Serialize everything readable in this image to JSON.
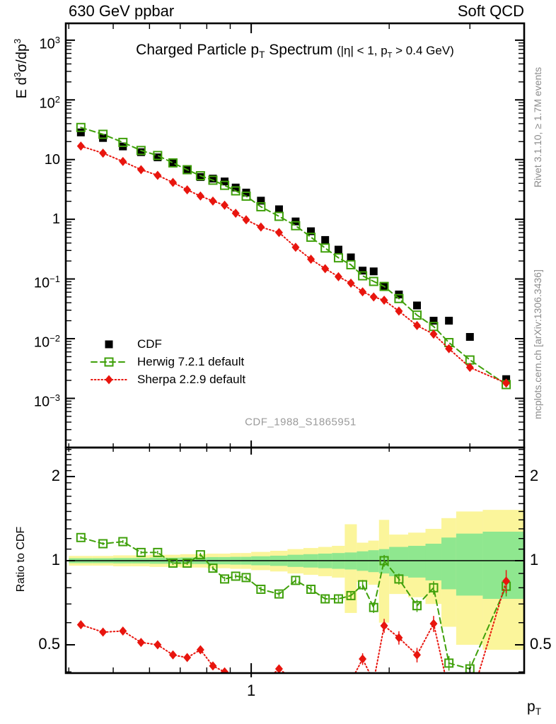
{
  "header": {
    "left": "630 GeV ppbar",
    "right": "Soft QCD"
  },
  "main_panel": {
    "title_parts": [
      "Charged Particle p",
      "T",
      " Spectrum"
    ],
    "title_paren_parts": [
      "(|η| < 1, p",
      "T",
      " > 0.4 GeV)"
    ],
    "ylabel_parts": [
      "E d",
      "3",
      "σ/dp",
      "3"
    ],
    "watermark": "CDF_1988_S1865951"
  },
  "ratio_panel": {
    "ylabel": "Ratio to CDF"
  },
  "x_axis_title_parts": [
    "p",
    "T"
  ],
  "side_notes": {
    "rivet": "Rivet 3.1.10, ≥ 1.7M events",
    "mcplots": "mcplots.cern.ch [arXiv:1306.3436]"
  },
  "legend": [
    {
      "label": "CDF",
      "series": 0
    },
    {
      "label": "Herwig 7.2.1 default",
      "series": 1
    },
    {
      "label": "Sherpa 2.2.9 default",
      "series": 2
    }
  ],
  "colors": {
    "cdf": "#000000",
    "herwig": "#3fa00a",
    "sherpa": "#e8150e",
    "band_yellow": "#fbf59b",
    "band_green": "#8fe78f"
  },
  "chart_data": {
    "type": "line",
    "title": "Charged Particle pT Spectrum (|η| < 1, pT > 0.4 GeV)",
    "xlabel": "pT",
    "ylabel": "E d3σ/dp3",
    "ratio_ylabel": "Ratio to CDF",
    "x_log": true,
    "y_log": true,
    "xlim": [
      0.394,
      3.94
    ],
    "ylim_main": [
      0.00015,
      1915
    ],
    "ylim_ratio": [
      0.396,
      2.54
    ],
    "bin_edges": [
      0.4,
      0.45,
      0.5,
      0.55,
      0.6,
      0.65,
      0.7,
      0.75,
      0.8,
      0.85,
      0.9,
      0.95,
      1.0,
      1.1,
      1.2,
      1.3,
      1.4,
      1.5,
      1.6,
      1.7,
      1.8,
      1.9,
      2.0,
      2.2,
      2.4,
      2.6,
      2.8,
      3.2,
      4.0
    ],
    "pt": [
      0.425,
      0.475,
      0.525,
      0.575,
      0.625,
      0.675,
      0.725,
      0.775,
      0.825,
      0.875,
      0.925,
      0.975,
      1.05,
      1.15,
      1.25,
      1.35,
      1.45,
      1.55,
      1.65,
      1.75,
      1.85,
      1.95,
      2.1,
      2.3,
      2.5,
      2.7,
      3.0,
      3.6
    ],
    "series": [
      {
        "name": "CDF",
        "marker": "filled-square",
        "color": "#000000",
        "line": "none",
        "values": [
          28.5,
          23.0,
          16.6,
          13.3,
          10.9,
          9.0,
          6.9,
          5.1,
          4.8,
          4.3,
          3.4,
          2.8,
          2.05,
          1.47,
          0.92,
          0.63,
          0.45,
          0.31,
          0.23,
          0.138,
          0.134,
          0.075,
          0.055,
          0.036,
          0.02,
          0.02,
          0.0107,
          0.0021
        ]
      },
      {
        "name": "Herwig 7.2.1 default",
        "marker": "open-square",
        "color": "#3fa00a",
        "line": "dashed",
        "values": [
          34.5,
          26.5,
          19.4,
          14.2,
          11.7,
          8.8,
          6.76,
          5.36,
          4.51,
          3.7,
          2.99,
          2.44,
          1.62,
          1.12,
          0.78,
          0.5,
          0.33,
          0.226,
          0.173,
          0.113,
          0.091,
          0.075,
          0.047,
          0.0248,
          0.016,
          0.0086,
          0.0044,
          0.0017
        ],
        "ratio": [
          1.21,
          1.15,
          1.17,
          1.07,
          1.07,
          0.98,
          0.98,
          1.05,
          0.94,
          0.86,
          0.88,
          0.87,
          0.79,
          0.76,
          0.85,
          0.79,
          0.73,
          0.73,
          0.75,
          0.82,
          0.68,
          1.0,
          0.86,
          0.69,
          0.8,
          0.43,
          0.41,
          0.81
        ],
        "ratio_err": [
          0.012,
          0.012,
          0.013,
          0.013,
          0.014,
          0.015,
          0.015,
          0.016,
          0.017,
          0.018,
          0.019,
          0.02,
          0.021,
          0.023,
          0.025,
          0.027,
          0.03,
          0.033,
          0.036,
          0.04,
          0.044,
          0.048,
          0.045,
          0.05,
          0.055,
          0.06,
          0.065,
          0.08
        ]
      },
      {
        "name": "Sherpa 2.2.9 default",
        "marker": "filled-diamond",
        "color": "#e8150e",
        "line": "dotted",
        "values": [
          16.8,
          12.8,
          9.3,
          6.78,
          5.45,
          4.14,
          3.11,
          2.45,
          2.02,
          1.72,
          1.26,
          0.98,
          0.74,
          0.6,
          0.34,
          0.214,
          0.149,
          0.109,
          0.085,
          0.061,
          0.05,
          0.044,
          0.029,
          0.0166,
          0.0119,
          0.0068,
          0.0033,
          0.0018
        ],
        "ratio": [
          0.59,
          0.555,
          0.56,
          0.51,
          0.5,
          0.46,
          0.45,
          0.48,
          0.42,
          0.4,
          0.37,
          0.35,
          0.36,
          0.41,
          0.37,
          0.34,
          0.33,
          0.35,
          0.37,
          0.445,
          0.37,
          0.585,
          0.53,
          0.46,
          0.595,
          0.34,
          0.31,
          0.845
        ],
        "ratio_err": [
          0.015,
          0.015,
          0.016,
          0.016,
          0.017,
          0.018,
          0.018,
          0.019,
          0.02,
          0.022,
          0.023,
          0.024,
          0.026,
          0.028,
          0.031,
          0.034,
          0.037,
          0.04,
          0.044,
          0.048,
          0.053,
          0.058,
          0.055,
          0.06,
          0.066,
          0.072,
          0.08,
          0.095
        ]
      }
    ],
    "bands": {
      "yellow_frac": [
        0.04,
        0.04,
        0.045,
        0.045,
        0.05,
        0.05,
        0.055,
        0.055,
        0.06,
        0.06,
        0.065,
        0.065,
        0.075,
        0.085,
        0.1,
        0.11,
        0.12,
        0.13,
        0.35,
        0.16,
        0.18,
        0.4,
        0.24,
        0.26,
        0.3,
        0.42,
        0.5,
        0.52
      ],
      "green_frac": [
        0.02,
        0.02,
        0.022,
        0.022,
        0.025,
        0.025,
        0.027,
        0.027,
        0.03,
        0.03,
        0.032,
        0.032,
        0.037,
        0.042,
        0.05,
        0.055,
        0.06,
        0.065,
        0.07,
        0.08,
        0.09,
        0.1,
        0.12,
        0.13,
        0.15,
        0.21,
        0.25,
        0.27
      ]
    },
    "x_axis": {
      "major": [
        1
      ],
      "major_labels": [
        "1"
      ],
      "minor": [
        0.4,
        0.5,
        0.6,
        0.7,
        0.8,
        0.9,
        2,
        3
      ]
    },
    "y_axis_main": {
      "major_exponents": [
        3,
        2,
        1,
        0,
        -1,
        -2,
        -3
      ]
    },
    "y_axis_ratio": {
      "major": [
        2,
        1,
        0.5
      ],
      "labels": [
        "2",
        "1",
        "0.5"
      ],
      "minor": [
        0.4,
        0.6,
        0.7,
        0.8,
        0.9,
        1.1,
        1.2,
        1.3,
        1.4,
        1.5,
        1.6,
        1.7,
        1.8,
        1.9,
        2.1,
        2.2,
        2.3,
        2.4,
        2.5
      ]
    },
    "legend_position": "inside-left-middle",
    "grid": false
  }
}
